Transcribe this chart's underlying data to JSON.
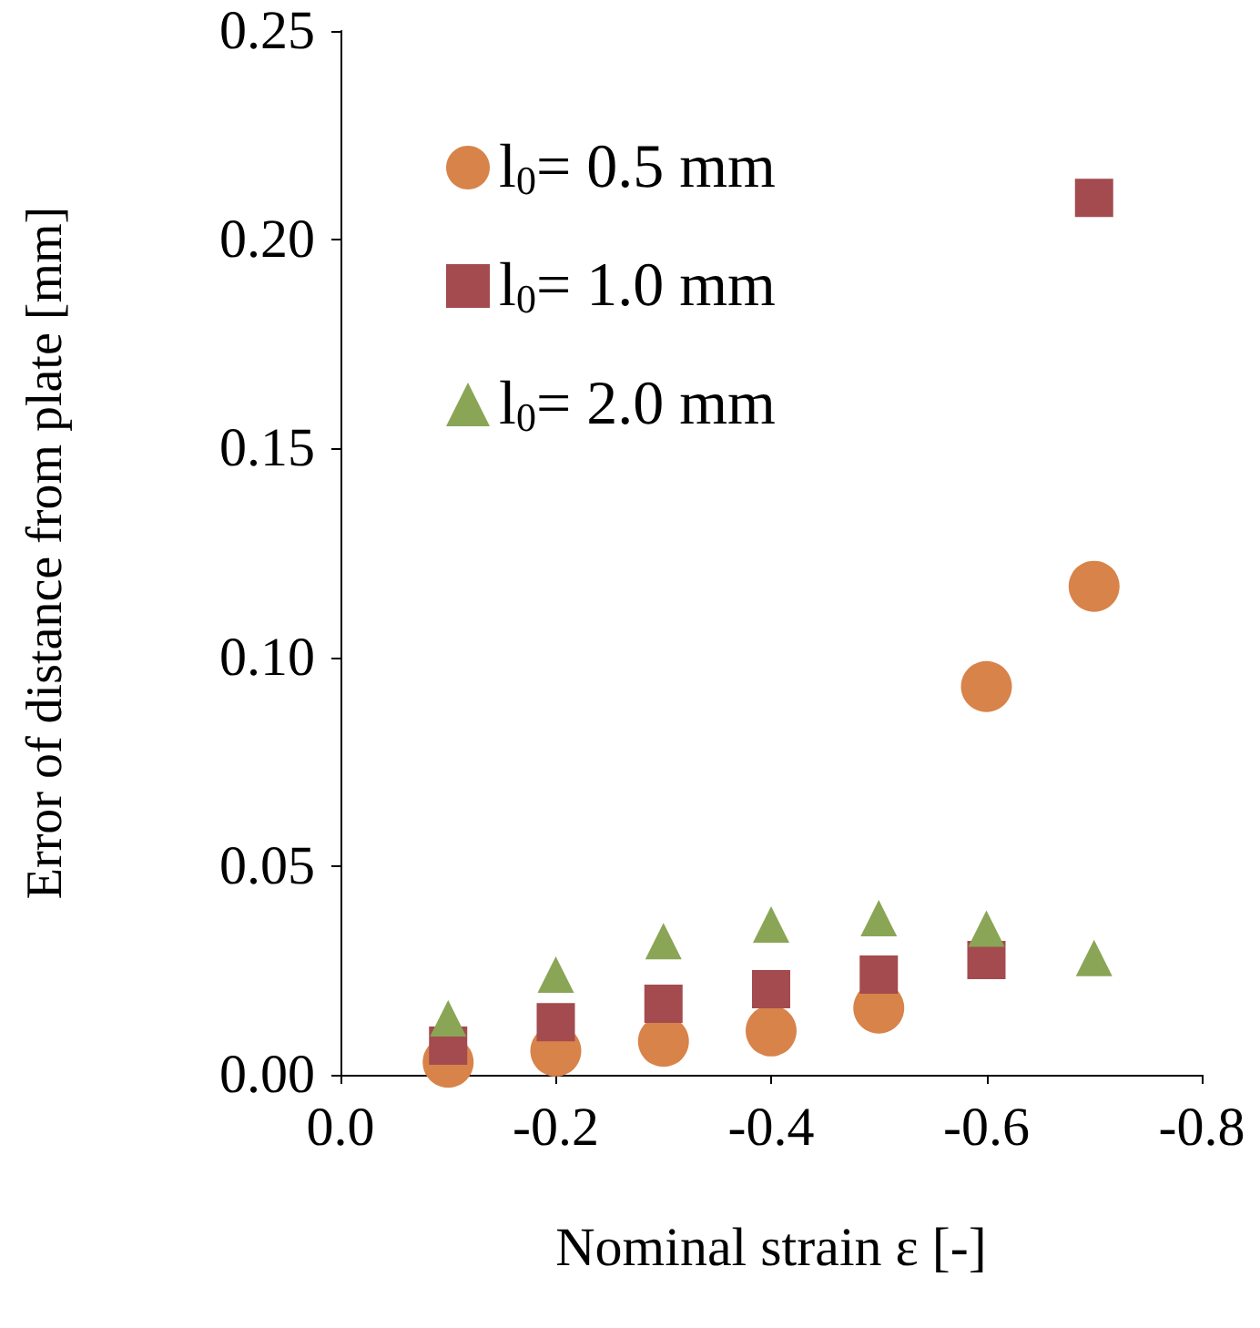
{
  "chart_data": {
    "type": "scatter",
    "xlabel": "Nominal strain ε [-]",
    "ylabel": "Error of distance from plate [mm]",
    "xlim": [
      0,
      -0.8
    ],
    "xticks": [
      {
        "value": 0,
        "label": "0.0"
      },
      {
        "value": -0.2,
        "label": "-0.2"
      },
      {
        "value": -0.4,
        "label": "-0.4"
      },
      {
        "value": -0.6,
        "label": "-0.6"
      },
      {
        "value": -0.8,
        "label": "-0.8"
      }
    ],
    "ylim": [
      0,
      0.25
    ],
    "yticks": [
      {
        "value": 0,
        "label": "0.00"
      },
      {
        "value": 0.05,
        "label": "0.05"
      },
      {
        "value": 0.1,
        "label": "0.10"
      },
      {
        "value": 0.15,
        "label": "0.15"
      },
      {
        "value": 0.2,
        "label": "0.20"
      },
      {
        "value": 0.25,
        "label": "0.25"
      }
    ],
    "x": [
      -0.1,
      -0.2,
      -0.3,
      -0.4,
      -0.5,
      -0.6,
      -0.7
    ],
    "series": [
      {
        "name": "l$_{0}$= 0.5 mm",
        "color": "#d8834a",
        "marker": "circle",
        "values": [
          0.003,
          0.0057,
          0.008,
          0.0105,
          0.016,
          0.093,
          0.117
        ]
      },
      {
        "name": "l$_{0}$= 1.0 mm",
        "color": "#a34b4f",
        "marker": "square",
        "values": [
          0.007,
          0.0126,
          0.017,
          0.0205,
          0.024,
          0.0275,
          0.21
        ]
      },
      {
        "name": "l$_{0}$= 2.0 mm",
        "color": "#8aa555",
        "marker": "triangle",
        "values": [
          0.0135,
          0.024,
          0.032,
          0.036,
          0.0375,
          0.035,
          0.028
        ]
      }
    ],
    "grid": false,
    "legend": "top left"
  }
}
